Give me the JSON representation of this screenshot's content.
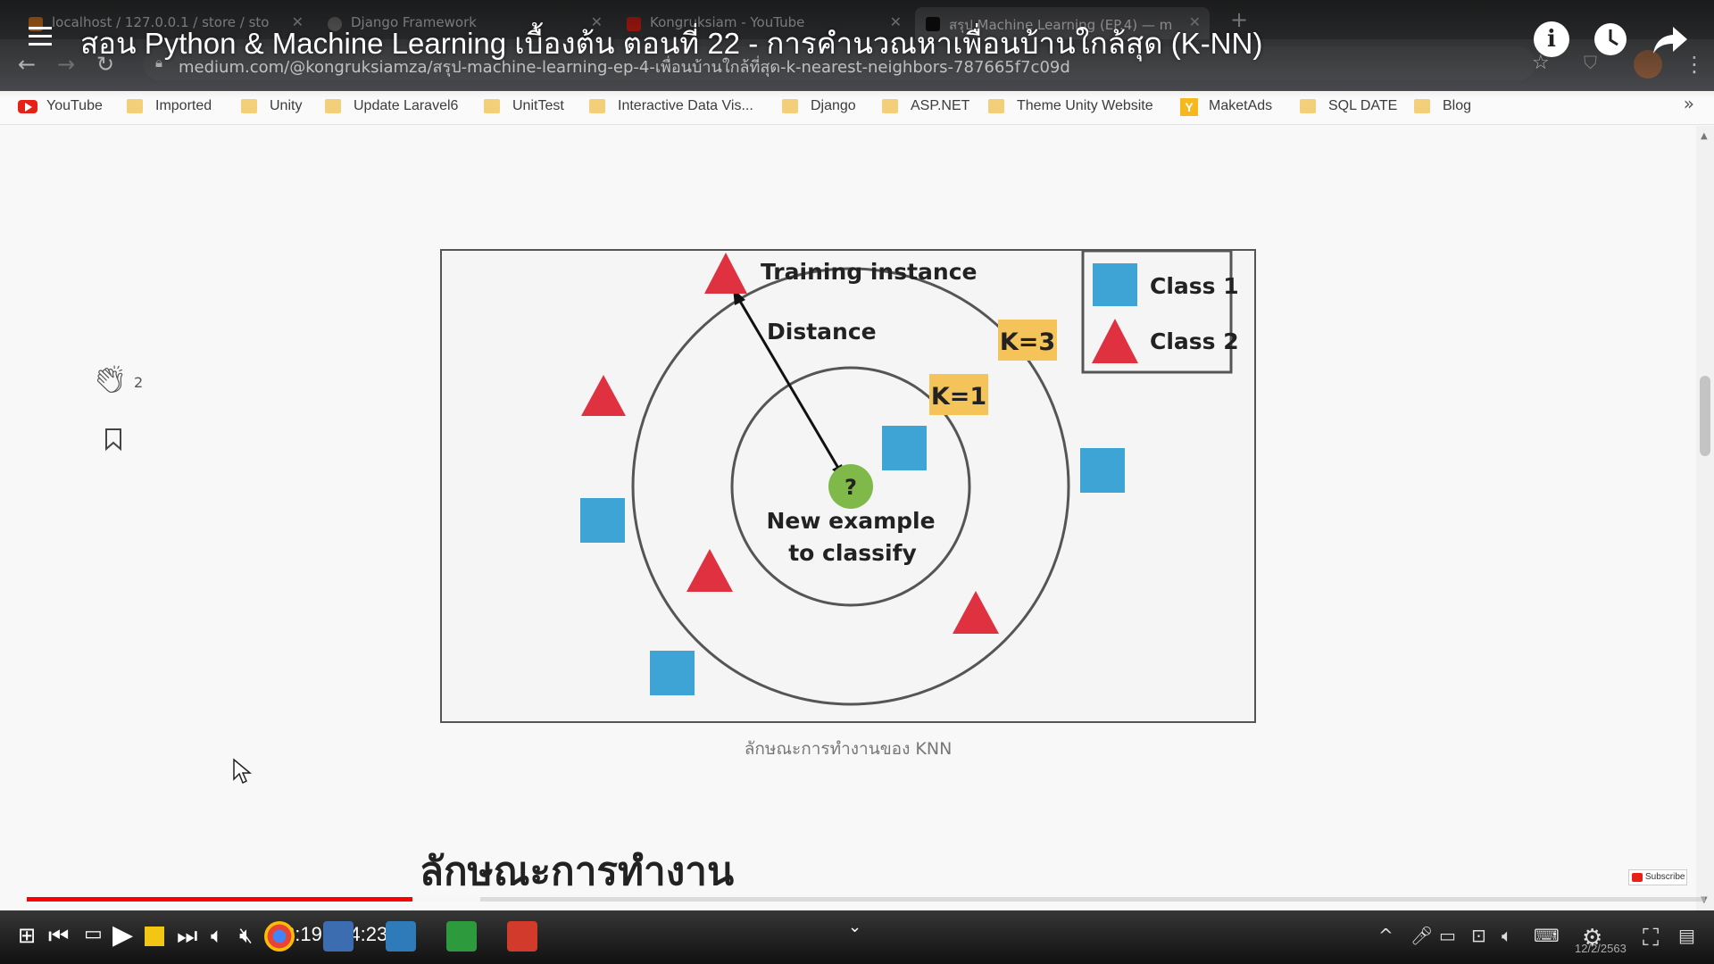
{
  "browser": {
    "tabs": [
      {
        "label": "localhost / 127.0.0.1 / store / sto",
        "favicon_color": "#e67e22"
      },
      {
        "label": "Django Framework",
        "favicon_color": "#777777"
      },
      {
        "label": "Kongruksiam - YouTube",
        "favicon_color": "#e62117"
      },
      {
        "label": "สรุป Machine Learning (EP.4) — m",
        "favicon_color": "#111111"
      }
    ],
    "url": "medium.com/@kongruksiamza/สรุป-machine-learning-ep-4-เพื่อนบ้านใกล้ที่สุด-k-nearest-neighbors-787665f7c09d",
    "bookmarks": [
      {
        "label": "YouTube",
        "icon": "youtube-icon"
      },
      {
        "label": "Imported",
        "icon": "folder-icon"
      },
      {
        "label": "Unity",
        "icon": "folder-icon"
      },
      {
        "label": "Update Laravel6",
        "icon": "folder-icon"
      },
      {
        "label": "UnitTest",
        "icon": "folder-icon"
      },
      {
        "label": "Interactive Data Vis...",
        "icon": "folder-icon"
      },
      {
        "label": "Django",
        "icon": "folder-icon"
      },
      {
        "label": "ASP.NET",
        "icon": "folder-icon"
      },
      {
        "label": "Theme Unity Website",
        "icon": "folder-icon"
      },
      {
        "label": "MaketAds",
        "icon": "y-icon"
      },
      {
        "label": "SQL DATE",
        "icon": "folder-icon"
      },
      {
        "label": "Blog",
        "icon": "folder-icon"
      }
    ],
    "bookmarks_more": "»"
  },
  "video": {
    "title": "สอน Python & Machine Learning เบื้องต้น ตอนที่ 22 - การคำนวณหาเพื่อนบ้านใกล้สุด (K-NN)",
    "current_time": "3:19",
    "duration": "14:23",
    "time_display": "3:19 / 14:23",
    "progress_fraction": 0.23,
    "buffered_fraction": 0.27,
    "subscribe_label": "Subscribe",
    "accent_color": "#ff0000"
  },
  "article": {
    "clap_count": "2",
    "figure": {
      "training_label": "Training instance",
      "distance_label": "Distance",
      "k3_label": "K=3",
      "k1_label": "K=1",
      "question_mark": "?",
      "new_example_line1": "New example",
      "new_example_line2": "to classify",
      "legend_class1": "Class 1",
      "legend_class2": "Class 2",
      "class1_color": "#3ea4d6",
      "class2_color": "#e03140",
      "query_color": "#7fb94a",
      "k_badge_color": "#f4c35a"
    },
    "caption": "ลักษณะการทำงานของ KNN",
    "section_heading": "ลักษณะการทำงาน"
  },
  "taskbar": {
    "date": "12/2/2563"
  }
}
